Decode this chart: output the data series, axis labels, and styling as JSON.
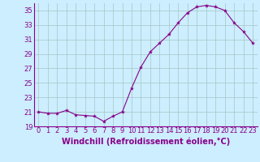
{
  "x": [
    0,
    1,
    2,
    3,
    4,
    5,
    6,
    7,
    8,
    9,
    10,
    11,
    12,
    13,
    14,
    15,
    16,
    17,
    18,
    19,
    20,
    21,
    22,
    23
  ],
  "y": [
    21.0,
    20.8,
    20.8,
    21.2,
    20.6,
    20.5,
    20.4,
    19.7,
    20.4,
    21.0,
    24.3,
    27.2,
    29.3,
    30.5,
    31.7,
    33.3,
    34.7,
    35.5,
    35.7,
    35.5,
    35.0,
    33.3,
    32.1,
    30.5
  ],
  "line_color": "#880088",
  "marker": "*",
  "marker_size": 3,
  "bg_color": "#cceeff",
  "grid_color": "#aacccc",
  "xlabel": "Windchill (Refroidissement éolien,°C)",
  "xlabel_fontsize": 7,
  "tick_fontsize": 6,
  "ylim": [
    19,
    36
  ],
  "yticks": [
    19,
    21,
    23,
    25,
    27,
    29,
    31,
    33,
    35
  ],
  "xlim": [
    -0.5,
    23.5
  ],
  "xticks": [
    0,
    1,
    2,
    3,
    4,
    5,
    6,
    7,
    8,
    9,
    10,
    11,
    12,
    13,
    14,
    15,
    16,
    17,
    18,
    19,
    20,
    21,
    22,
    23
  ]
}
